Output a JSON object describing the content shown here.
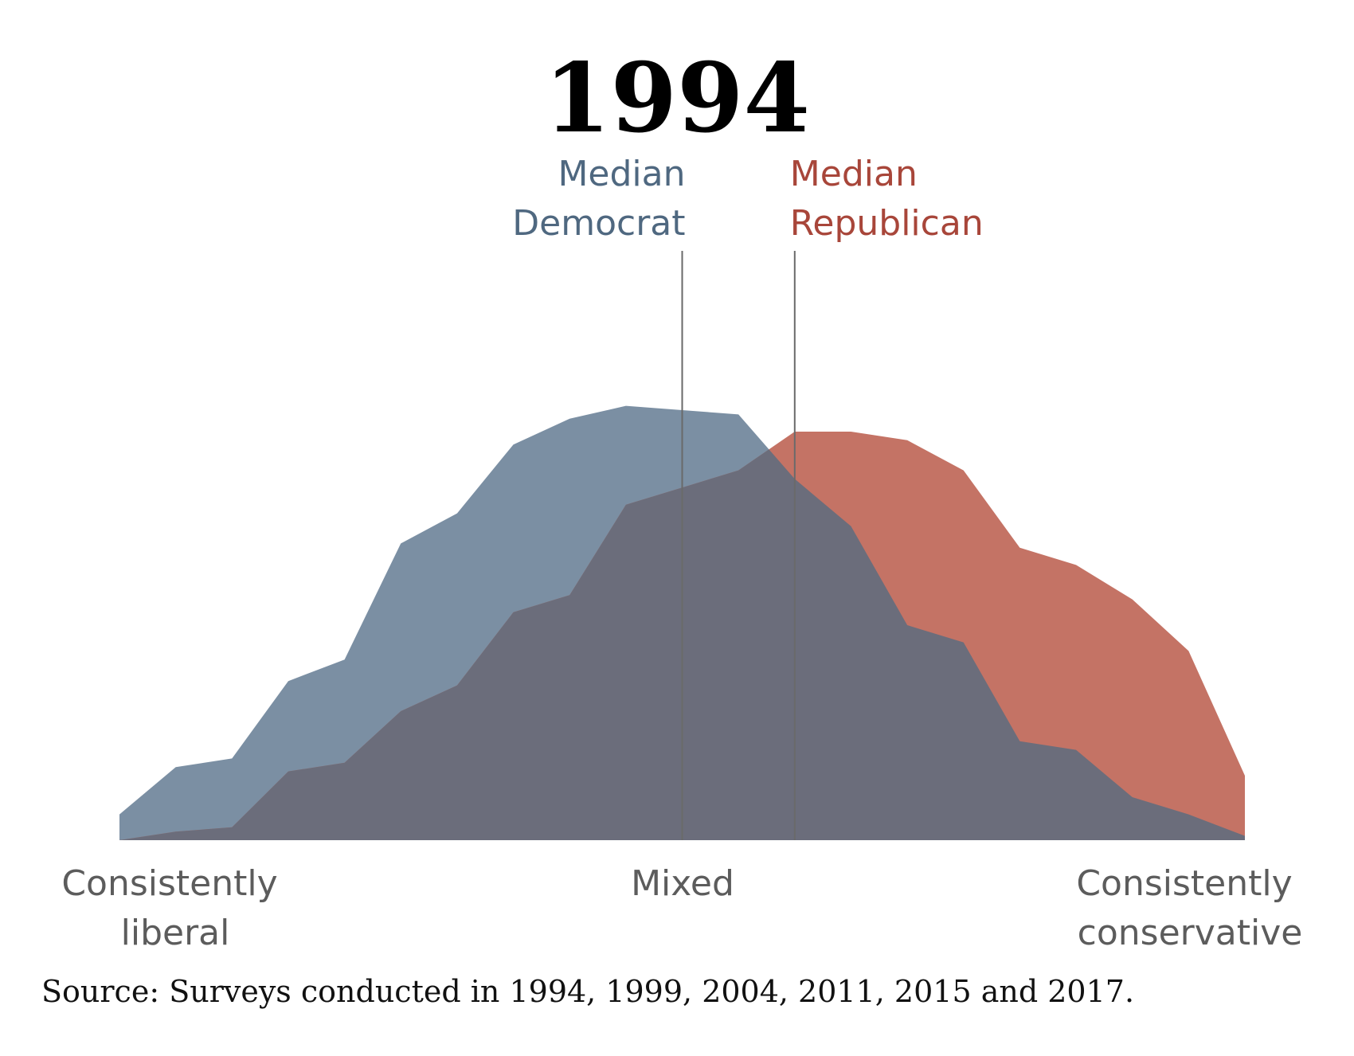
{
  "chart_data": {
    "type": "area",
    "title": "1994",
    "x": [
      1,
      2,
      3,
      4,
      5,
      6,
      7,
      8,
      9,
      10,
      11,
      12,
      13,
      14,
      15,
      16,
      17,
      18,
      19,
      20,
      21
    ],
    "xlim": [
      1,
      21
    ],
    "ylim": [
      0,
      100
    ],
    "x_labels": {
      "left": [
        "Consistently",
        "liberal"
      ],
      "center": [
        "Mixed"
      ],
      "right": [
        "Consistently",
        "conservative"
      ]
    },
    "series": [
      {
        "name": "Democrat",
        "color": "#7b8fa3",
        "values": [
          6,
          17,
          19,
          37,
          42,
          69,
          76,
          92,
          98,
          101,
          100,
          99,
          84,
          73,
          50,
          46,
          23,
          21,
          10,
          6,
          1
        ]
      },
      {
        "name": "Republican",
        "color": "#c47365",
        "values": [
          0,
          2,
          3,
          16,
          18,
          30,
          36,
          53,
          57,
          78,
          82,
          86,
          95,
          95,
          93,
          86,
          68,
          64,
          56,
          44,
          15
        ]
      }
    ],
    "overlap_color": "#6b6d7b",
    "medians": [
      {
        "label": [
          "Median",
          "Democrat"
        ],
        "x": 11.0,
        "color": "#4f6880",
        "align": "right"
      },
      {
        "label": [
          "Median",
          "Republican"
        ],
        "x": 13.0,
        "color": "#a8463a",
        "align": "left"
      }
    ],
    "source": "Source: Surveys conducted in 1994, 1999, 2004, 2011, 2015 and 2017."
  }
}
